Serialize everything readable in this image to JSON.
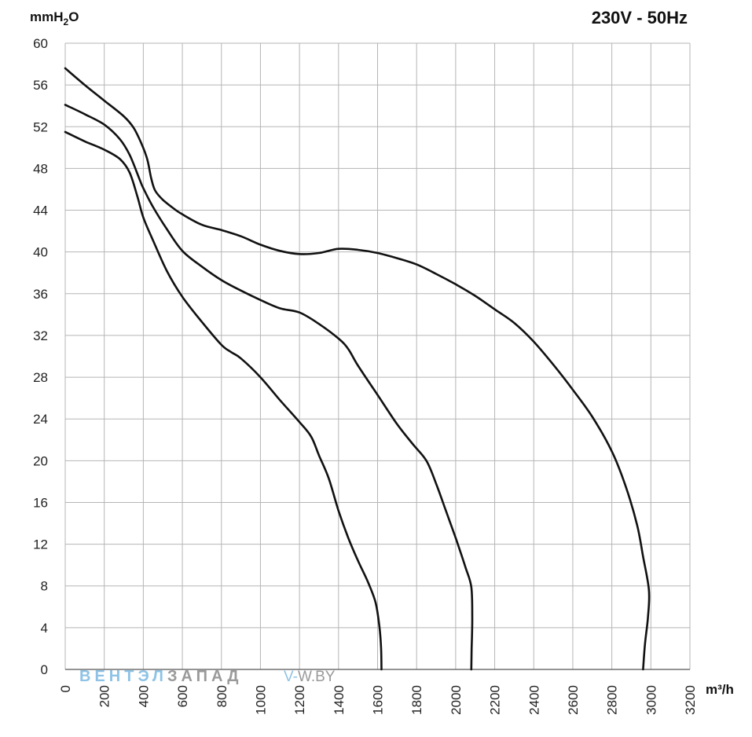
{
  "chart_data": {
    "type": "line",
    "title": "230V - 50Hz",
    "ylabel": {
      "base": "mmH",
      "sub": "2",
      "tail": "O"
    },
    "xlabel": "m³/h",
    "xlim": [
      0,
      3200
    ],
    "ylim": [
      0,
      60
    ],
    "xticks": [
      0,
      200,
      400,
      600,
      800,
      1000,
      1200,
      1400,
      1600,
      1800,
      2000,
      2200,
      2400,
      2600,
      2800,
      3000,
      3200
    ],
    "yticks": [
      0,
      4,
      8,
      12,
      16,
      20,
      24,
      28,
      32,
      36,
      40,
      44,
      48,
      52,
      56,
      60
    ],
    "grid": true,
    "series": [
      {
        "points": [
          [
            0,
            51.5
          ],
          [
            100,
            50.6
          ],
          [
            200,
            49.8
          ],
          [
            280,
            48.9
          ],
          [
            330,
            47.6
          ],
          [
            370,
            45.3
          ],
          [
            400,
            43.3
          ],
          [
            450,
            41.1
          ],
          [
            520,
            38.2
          ],
          [
            600,
            35.7
          ],
          [
            700,
            33.3
          ],
          [
            800,
            31.1
          ],
          [
            850,
            30.4
          ],
          [
            900,
            29.8
          ],
          [
            1000,
            28
          ],
          [
            1100,
            25.8
          ],
          [
            1200,
            23.7
          ],
          [
            1260,
            22.3
          ],
          [
            1300,
            20.5
          ],
          [
            1350,
            18.3
          ],
          [
            1400,
            15.2
          ],
          [
            1450,
            12.6
          ],
          [
            1500,
            10.4
          ],
          [
            1550,
            8.4
          ],
          [
            1590,
            6.4
          ],
          [
            1610,
            4
          ],
          [
            1618,
            2
          ],
          [
            1620,
            0
          ]
        ]
      },
      {
        "points": [
          [
            0,
            54.1
          ],
          [
            100,
            53.2
          ],
          [
            200,
            52.2
          ],
          [
            280,
            50.8
          ],
          [
            330,
            49.3
          ],
          [
            380,
            47
          ],
          [
            400,
            46.1
          ],
          [
            450,
            44.3
          ],
          [
            520,
            42.2
          ],
          [
            600,
            40.1
          ],
          [
            700,
            38.6
          ],
          [
            800,
            37.3
          ],
          [
            900,
            36.3
          ],
          [
            1000,
            35.4
          ],
          [
            1100,
            34.6
          ],
          [
            1200,
            34.2
          ],
          [
            1300,
            33.1
          ],
          [
            1400,
            31.7
          ],
          [
            1450,
            30.7
          ],
          [
            1500,
            29.1
          ],
          [
            1600,
            26.3
          ],
          [
            1700,
            23.5
          ],
          [
            1780,
            21.6
          ],
          [
            1850,
            20
          ],
          [
            1900,
            17.8
          ],
          [
            1950,
            15.2
          ],
          [
            2000,
            12.6
          ],
          [
            2050,
            9.8
          ],
          [
            2080,
            7.9
          ],
          [
            2085,
            5
          ],
          [
            2082,
            2
          ],
          [
            2080,
            0
          ]
        ]
      },
      {
        "points": [
          [
            0,
            57.6
          ],
          [
            100,
            56
          ],
          [
            200,
            54.5
          ],
          [
            300,
            53
          ],
          [
            350,
            51.9
          ],
          [
            390,
            50.4
          ],
          [
            420,
            48.9
          ],
          [
            440,
            47.1
          ],
          [
            460,
            45.9
          ],
          [
            500,
            45
          ],
          [
            560,
            44.1
          ],
          [
            600,
            43.6
          ],
          [
            700,
            42.6
          ],
          [
            800,
            42.1
          ],
          [
            900,
            41.5
          ],
          [
            1000,
            40.7
          ],
          [
            1100,
            40.1
          ],
          [
            1200,
            39.8
          ],
          [
            1300,
            39.9
          ],
          [
            1400,
            40.3
          ],
          [
            1500,
            40.2
          ],
          [
            1600,
            39.9
          ],
          [
            1700,
            39.4
          ],
          [
            1800,
            38.8
          ],
          [
            1900,
            37.9
          ],
          [
            2000,
            36.9
          ],
          [
            2100,
            35.8
          ],
          [
            2200,
            34.5
          ],
          [
            2300,
            33.2
          ],
          [
            2400,
            31.4
          ],
          [
            2500,
            29.2
          ],
          [
            2600,
            26.8
          ],
          [
            2700,
            24.2
          ],
          [
            2800,
            20.9
          ],
          [
            2870,
            17.6
          ],
          [
            2930,
            13.8
          ],
          [
            2960,
            10.8
          ],
          [
            2990,
            7.6
          ],
          [
            2985,
            5
          ],
          [
            2970,
            2.5
          ],
          [
            2960,
            0
          ]
        ]
      }
    ]
  },
  "watermark": {
    "part1": "ВЕНТЭЛ",
    "part2": "ЗАПАД",
    "part3": "V-",
    "part4": "W.BY"
  }
}
